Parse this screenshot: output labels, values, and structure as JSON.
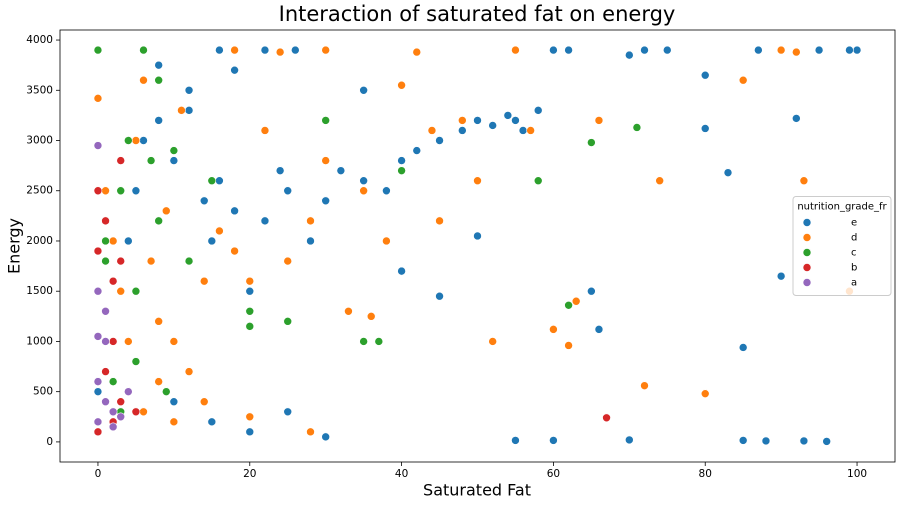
{
  "chart_data": {
    "type": "scatter",
    "title": "Interaction of saturated fat on energy",
    "x_label": "Saturated Fat",
    "y_label": "Energy",
    "legend_title": "nutrition_grade_fr",
    "legend_position": "center right",
    "xlim": [
      -5,
      105
    ],
    "ylim": [
      -200,
      4100
    ],
    "xticks": [
      0,
      20,
      40,
      60,
      80,
      100
    ],
    "yticks": [
      0,
      500,
      1000,
      1500,
      2000,
      2500,
      3000,
      3500,
      4000
    ],
    "grid": false,
    "series": [
      {
        "name": "e",
        "color": "#1f77b4",
        "x": [
          0,
          2,
          4,
          5,
          6,
          8,
          10,
          12,
          14,
          15,
          16,
          18,
          20,
          22,
          24,
          25,
          28,
          30,
          32,
          35,
          38,
          40,
          42,
          45,
          48,
          50,
          52,
          54,
          55,
          56,
          58,
          60,
          62,
          65,
          70,
          72,
          75,
          80,
          83,
          85,
          87,
          90,
          92,
          95,
          100,
          10,
          15,
          20,
          25,
          30,
          12,
          18,
          22,
          26,
          35,
          40,
          50,
          55,
          60,
          66,
          70,
          80,
          85,
          88,
          93,
          96,
          99,
          45,
          8,
          16
        ],
        "values": [
          500,
          1000,
          2000,
          2500,
          3000,
          3200,
          2800,
          3300,
          2400,
          2000,
          2600,
          2300,
          1500,
          2200,
          2700,
          2500,
          2000,
          2400,
          2700,
          2600,
          2500,
          2800,
          2900,
          3000,
          3100,
          3200,
          3150,
          3250,
          3200,
          3100,
          3300,
          3900,
          3900,
          1500,
          3850,
          3900,
          3900,
          3650,
          2680,
          940,
          3900,
          1650,
          3220,
          3900,
          3900,
          400,
          200,
          100,
          300,
          50,
          3500,
          3700,
          3900,
          3900,
          3500,
          1700,
          2050,
          15,
          15,
          1120,
          20,
          3120,
          15,
          10,
          10,
          5,
          3900,
          1450,
          3750,
          3900
        ]
      },
      {
        "name": "d",
        "color": "#ff7f0e",
        "x": [
          0,
          1,
          2,
          3,
          4,
          5,
          6,
          7,
          8,
          9,
          10,
          11,
          12,
          14,
          16,
          18,
          20,
          22,
          25,
          28,
          30,
          33,
          35,
          38,
          40,
          44,
          48,
          50,
          55,
          60,
          63,
          66,
          72,
          74,
          80,
          85,
          90,
          93,
          99,
          6,
          8,
          10,
          14,
          20,
          28,
          36,
          45,
          52,
          57,
          62,
          18,
          24,
          30,
          42,
          92
        ],
        "values": [
          3420,
          2500,
          2000,
          1500,
          1000,
          3000,
          3600,
          1800,
          1200,
          2300,
          1000,
          3300,
          700,
          1600,
          2100,
          1900,
          1600,
          3100,
          1800,
          2200,
          2800,
          1300,
          2500,
          2000,
          3550,
          3100,
          3200,
          2600,
          3900,
          1120,
          1400,
          3200,
          560,
          2600,
          480,
          3600,
          3900,
          2600,
          1500,
          300,
          600,
          200,
          400,
          250,
          100,
          1250,
          2200,
          1000,
          3100,
          960,
          3900,
          3880,
          3900,
          3880,
          3880
        ]
      },
      {
        "name": "c",
        "color": "#2ca02c",
        "x": [
          0,
          1,
          2,
          3,
          4,
          5,
          6,
          7,
          8,
          10,
          12,
          15,
          20,
          25,
          30,
          35,
          40,
          58,
          62,
          65,
          71,
          6,
          8,
          3,
          2,
          1,
          5,
          9,
          20,
          37
        ],
        "values": [
          3900,
          2000,
          1000,
          2500,
          3000,
          1500,
          3900,
          2800,
          2200,
          2900,
          1800,
          2600,
          1300,
          1200,
          3200,
          1000,
          2700,
          2600,
          1360,
          2980,
          3130,
          3900,
          3600,
          300,
          600,
          1800,
          800,
          500,
          1150,
          1000
        ]
      },
      {
        "name": "b",
        "color": "#d62728",
        "x": [
          0,
          0,
          1,
          1,
          2,
          2,
          3,
          3,
          4,
          5,
          2,
          1,
          67,
          0,
          3
        ],
        "values": [
          2500,
          1900,
          2200,
          700,
          1600,
          200,
          2800,
          400,
          500,
          300,
          1000,
          1300,
          240,
          100,
          1800
        ]
      },
      {
        "name": "a",
        "color": "#9467bd",
        "x": [
          0,
          0,
          0,
          1,
          1,
          2,
          2,
          3,
          0,
          1,
          0,
          4
        ],
        "values": [
          2950,
          1500,
          1050,
          1000,
          400,
          150,
          300,
          250,
          600,
          1300,
          200,
          500
        ]
      }
    ]
  }
}
